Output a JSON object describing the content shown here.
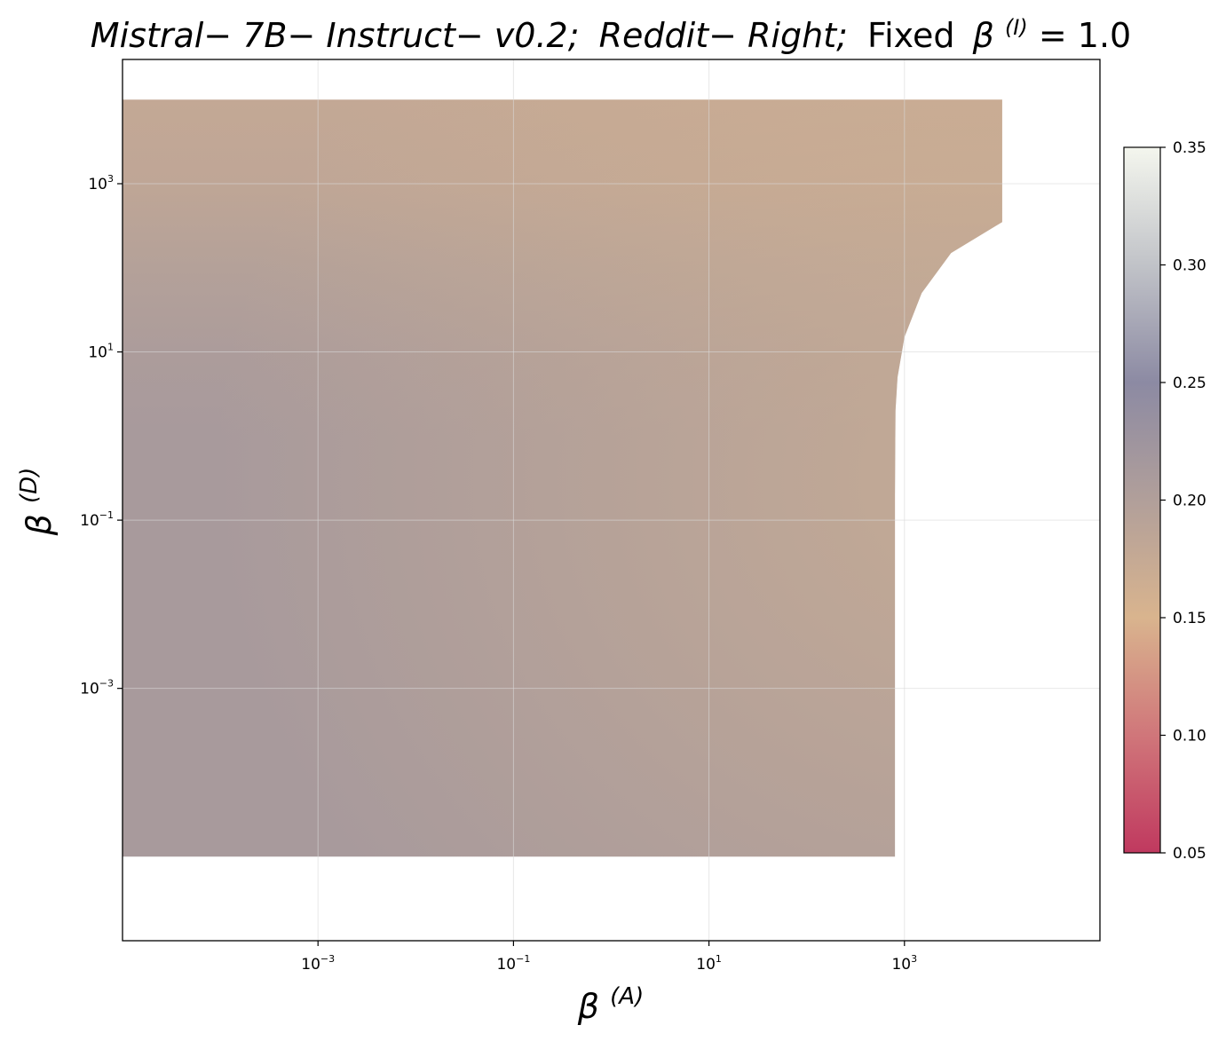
{
  "chart_data": {
    "type": "heatmap",
    "title_parts": {
      "model": "Mistral− 7B− Instruct− v0.2;",
      "dataset": "Reddit− Right;",
      "fixed": "Fixed",
      "beta": "β",
      "superscript": "(I)",
      "value": " = 1.0"
    },
    "xlabel": {
      "symbol": "β",
      "superscript": "(A)"
    },
    "ylabel": {
      "symbol": "β",
      "superscript": "(D)"
    },
    "x_scale": "log",
    "y_scale": "log",
    "xlim": [
      1e-05,
      100000
    ],
    "ylim": [
      1e-06,
      30000
    ],
    "x_ticks": [
      {
        "value": 0.001,
        "base": "10",
        "exp": "−3"
      },
      {
        "value": 0.1,
        "base": "10",
        "exp": "−1"
      },
      {
        "value": 10,
        "base": "10",
        "exp": "1"
      },
      {
        "value": 1000,
        "base": "10",
        "exp": "3"
      }
    ],
    "y_ticks": [
      {
        "value": 1000,
        "base": "10",
        "exp": "3"
      },
      {
        "value": 10,
        "base": "10",
        "exp": "1"
      },
      {
        "value": 0.1,
        "base": "10",
        "exp": "−1"
      },
      {
        "value": 0.001,
        "base": "10",
        "exp": "−3"
      }
    ],
    "grid": true,
    "data_region": {
      "x_range": [
        1e-05,
        10000
      ],
      "y_range": [
        1e-05,
        10000
      ],
      "boundary": [
        [
          800,
          1e-05
        ],
        [
          800,
          0.2
        ],
        [
          810,
          2
        ],
        [
          850,
          5
        ],
        [
          1000,
          15
        ],
        [
          1500,
          50
        ],
        [
          3000,
          150
        ],
        [
          10000,
          350
        ]
      ]
    },
    "value_profile": [
      {
        "y": 1e-05,
        "value": 0.212
      },
      {
        "y": 1,
        "value": 0.212
      },
      {
        "y": 10,
        "value": 0.207
      },
      {
        "y": 100,
        "value": 0.196
      },
      {
        "y": 1000,
        "value": 0.183
      },
      {
        "y": 10000,
        "value": 0.178
      }
    ],
    "colorbar": {
      "range": [
        0.05,
        0.35
      ],
      "ticks": [
        "0.35",
        "0.30",
        "0.25",
        "0.20",
        "0.15",
        "0.10",
        "0.05"
      ],
      "stops": [
        {
          "value": 0.05,
          "color": "#c0395f"
        },
        {
          "value": 0.1,
          "color": "#d0767a"
        },
        {
          "value": 0.15,
          "color": "#d9b48e"
        },
        {
          "value": 0.2,
          "color": "#b19f9a"
        },
        {
          "value": 0.25,
          "color": "#8c8aa3"
        },
        {
          "value": 0.3,
          "color": "#c1c3c8"
        },
        {
          "value": 0.35,
          "color": "#f4f6ee"
        }
      ]
    }
  }
}
